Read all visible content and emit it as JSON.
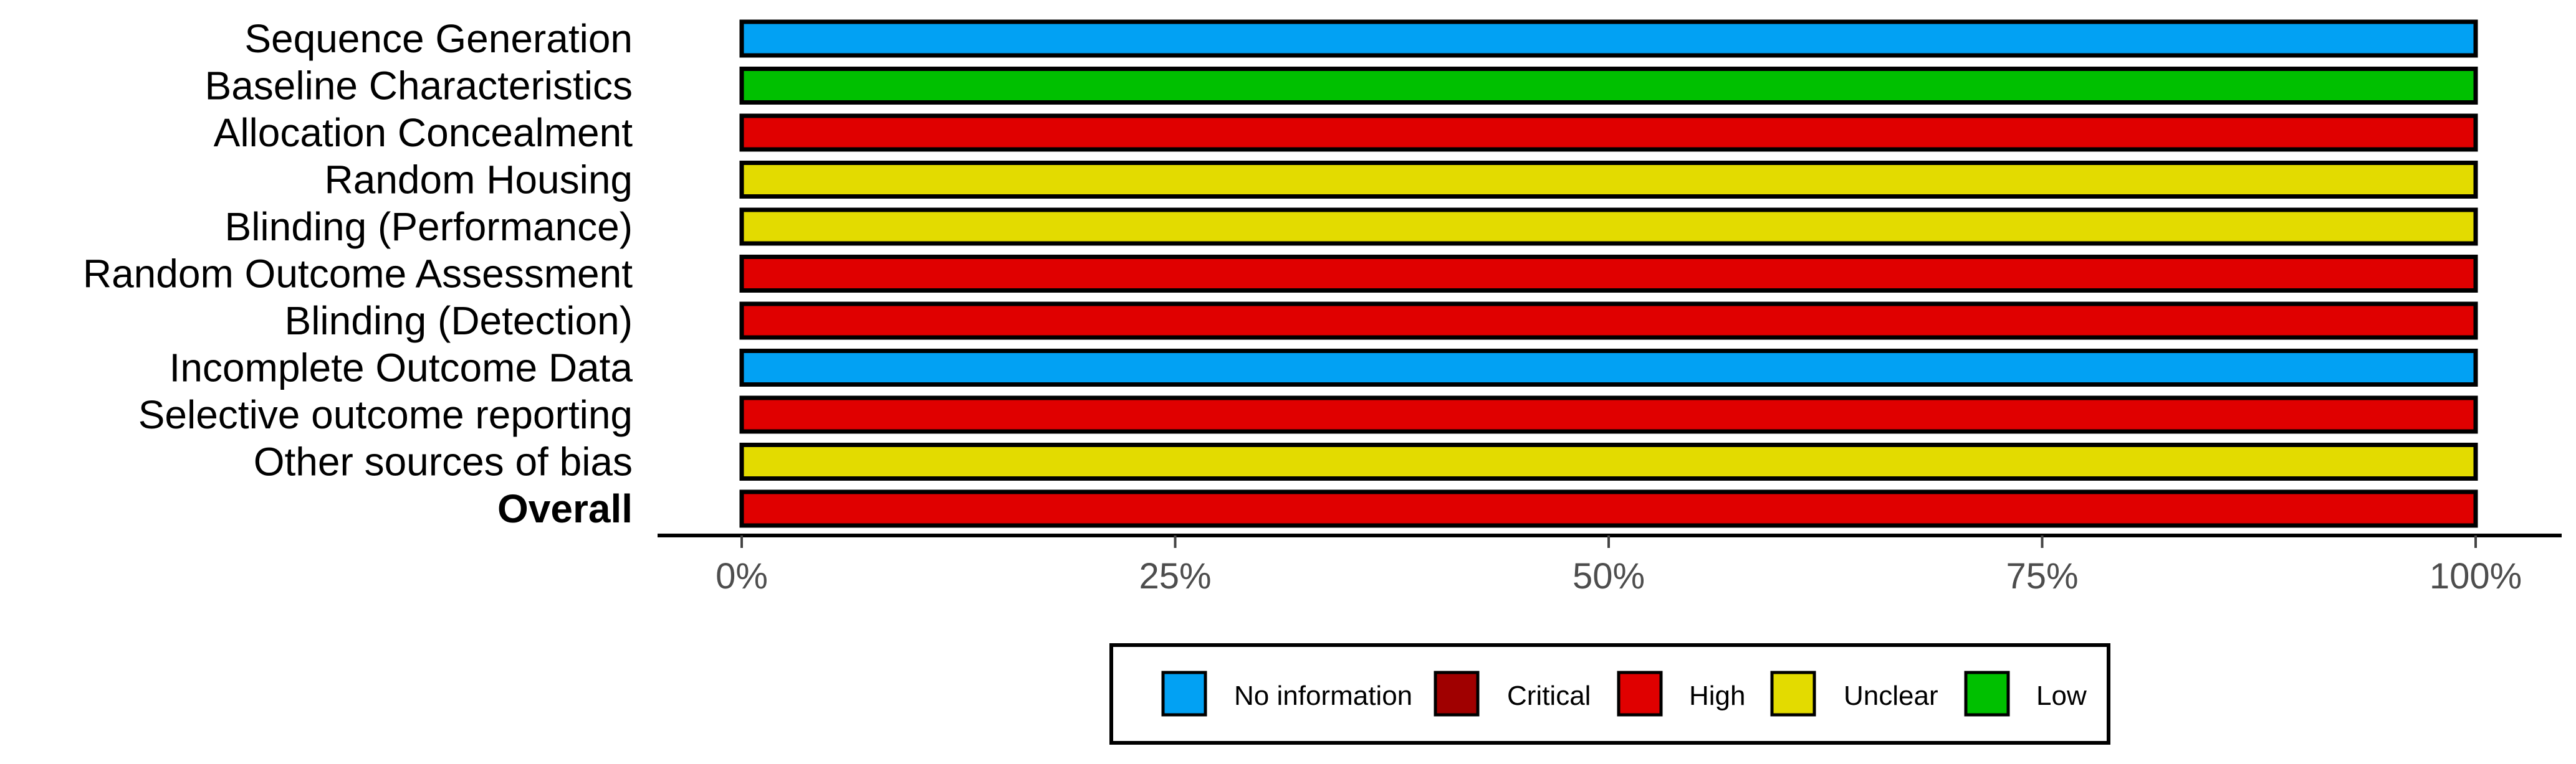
{
  "chart_data": {
    "type": "bar",
    "orientation": "horizontal",
    "stacked": true,
    "categories": [
      "Sequence Generation",
      "Baseline Characteristics",
      "Allocation Concealment",
      "Random Housing",
      "Blinding (Performance)",
      "Random Outcome Assessment",
      "Blinding (Detection)",
      "Incomplete Outcome Data",
      "Selective outcome reporting",
      "Other sources of bias",
      "Overall"
    ],
    "bold_categories": [
      "Overall"
    ],
    "series": [
      {
        "name": "No information",
        "color": "#02A1F3",
        "values": [
          100,
          0,
          0,
          0,
          0,
          0,
          0,
          100,
          0,
          0,
          0
        ]
      },
      {
        "name": "Critical",
        "color": "#A00000",
        "values": [
          0,
          0,
          0,
          0,
          0,
          0,
          0,
          0,
          0,
          0,
          0
        ]
      },
      {
        "name": "High",
        "color": "#E00000",
        "values": [
          0,
          0,
          100,
          0,
          0,
          100,
          100,
          0,
          100,
          0,
          100
        ]
      },
      {
        "name": "Unclear",
        "color": "#E3DB00",
        "values": [
          0,
          0,
          0,
          100,
          100,
          0,
          0,
          0,
          0,
          100,
          0
        ]
      },
      {
        "name": "Low",
        "color": "#00C000",
        "values": [
          0,
          100,
          0,
          0,
          0,
          0,
          0,
          0,
          0,
          0,
          0
        ]
      }
    ],
    "x_ticks": [
      0,
      25,
      50,
      75,
      100
    ],
    "x_tick_labels": [
      "0%",
      "25%",
      "50%",
      "75%",
      "100%"
    ],
    "xlim": [
      0,
      100
    ],
    "title": "",
    "xlabel": "",
    "ylabel": "",
    "grid": false,
    "legend_position": "bottom",
    "legend": [
      "No information",
      "Critical",
      "High",
      "Unclear",
      "Low"
    ]
  }
}
